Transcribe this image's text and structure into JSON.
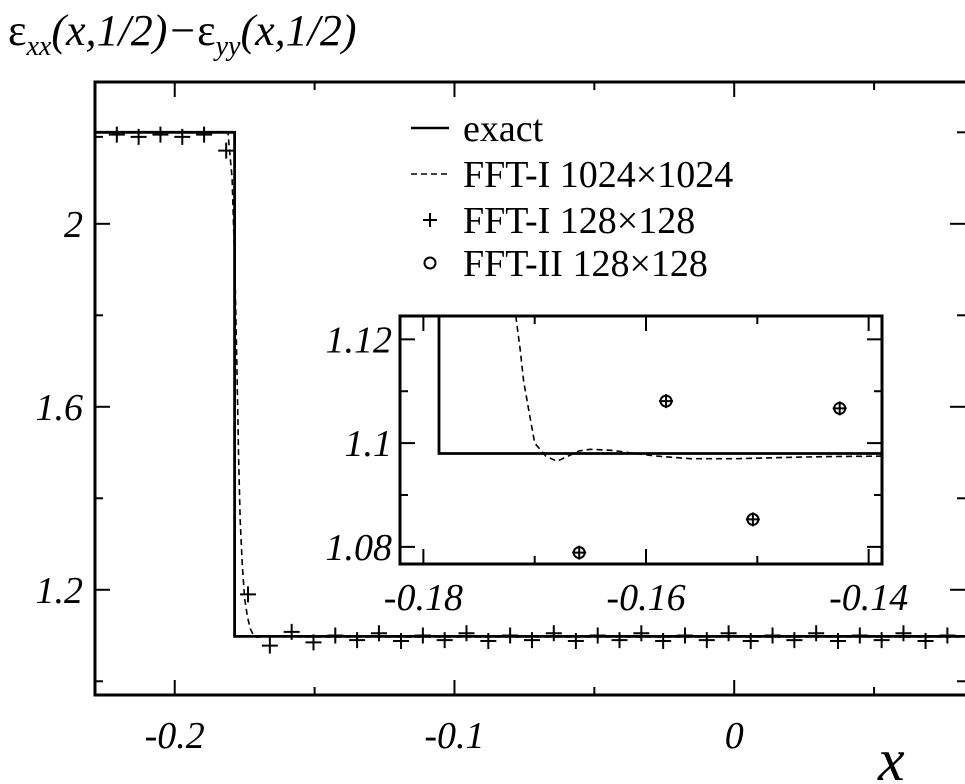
{
  "chart_data": [
    {
      "type": "line",
      "title": "",
      "ylabel": "ε_xx(x,1/2)−ε_yy(x,1/2)",
      "ylabel_parts": {
        "eps1": "ε",
        "sub1": "xx",
        "mid": "(x,1/2)−",
        "eps2": "ε",
        "sub2": "yy",
        "end": "(x,1/2)"
      },
      "xlabel": "x",
      "xlim": [
        -0.2285,
        0.0825
      ],
      "ylim": [
        0.97,
        2.31
      ],
      "xticks": [
        -0.2,
        -0.1,
        0
      ],
      "xtick_labels": [
        "-0.2",
        "-0.1",
        "0"
      ],
      "yticks": [
        1.2,
        1.6,
        2
      ],
      "ytick_labels": [
        "1.2",
        "1.6",
        "2"
      ],
      "grid": false,
      "legend_position": "top-right",
      "legend": [
        {
          "label": "exact",
          "marker": "solid-line"
        },
        {
          "label": "FFT-I 1024×1024",
          "marker": "dashed-line"
        },
        {
          "label": "FFT-I 128×128",
          "marker": "plus"
        },
        {
          "label": "FFT-II 128×128",
          "marker": "circle"
        }
      ],
      "series": [
        {
          "name": "exact",
          "style": "solid",
          "x": [
            -0.2285,
            -0.1786,
            -0.1786,
            0.0825
          ],
          "y": [
            2.2,
            2.2,
            1.098,
            1.098
          ]
        },
        {
          "name": "FFT-I 1024×1024",
          "style": "dashed",
          "x": [
            -0.2285,
            -0.181,
            -0.1795,
            -0.1785,
            -0.1778,
            -0.1772,
            -0.1766,
            -0.1758,
            -0.175,
            -0.174,
            -0.173,
            -0.1718,
            -0.1705,
            -0.169,
            -0.165,
            -0.16,
            -0.155,
            -0.15,
            -0.14,
            -0.1,
            0.0,
            0.0825
          ],
          "y": [
            2.2,
            2.2,
            2.1,
            1.9,
            1.7,
            1.5,
            1.35,
            1.25,
            1.18,
            1.14,
            1.115,
            1.1,
            1.096,
            1.098,
            1.099,
            1.098,
            1.097,
            1.097,
            1.097,
            1.097,
            1.097,
            1.097
          ]
        },
        {
          "name": "FFT-I 128×128",
          "style": "plus",
          "x": [
            -0.2285,
            -0.2207,
            -0.2129,
            -0.2051,
            -0.1973,
            -0.1895,
            -0.1816,
            -0.1738,
            -0.166,
            -0.1582,
            -0.1504,
            -0.1426,
            -0.1348,
            -0.127,
            -0.1191,
            -0.1113,
            -0.1035,
            -0.0957,
            -0.0879,
            -0.0801,
            -0.0723,
            -0.0645,
            -0.0566,
            -0.0488,
            -0.041,
            -0.0332,
            -0.0254,
            -0.0176,
            -0.0098,
            -0.002,
            0.0059,
            0.0137,
            0.0215,
            0.0293,
            0.0371,
            0.0449,
            0.0527,
            0.0605,
            0.0684,
            0.0762
          ],
          "y": [
            2.19,
            2.195,
            2.19,
            2.195,
            2.19,
            2.195,
            2.16,
            1.19,
            1.078,
            1.108,
            1.085,
            1.1,
            1.09,
            1.105,
            1.088,
            1.1,
            1.09,
            1.105,
            1.088,
            1.1,
            1.09,
            1.105,
            1.088,
            1.1,
            1.09,
            1.105,
            1.088,
            1.1,
            1.09,
            1.105,
            1.088,
            1.1,
            1.09,
            1.105,
            1.088,
            1.1,
            1.09,
            1.105,
            1.088,
            1.1
          ]
        },
        {
          "name": "FFT-II 128×128",
          "style": "circle",
          "x": [],
          "y": []
        }
      ]
    },
    {
      "type": "line",
      "title": "",
      "xlabel": "",
      "ylabel": "",
      "xlim": [
        -0.1821,
        -0.1388
      ],
      "ylim": [
        1.0767,
        1.1245
      ],
      "xticks": [
        -0.18,
        -0.16,
        -0.14
      ],
      "xtick_labels": [
        "-0.18",
        "-0.16",
        "-0.14"
      ],
      "yticks": [
        1.08,
        1.1,
        1.12
      ],
      "ytick_labels": [
        "1.08",
        "1.1",
        "1.12"
      ],
      "grid": false,
      "series": [
        {
          "name": "exact",
          "style": "solid",
          "x": [
            -0.1786,
            -0.1786,
            -0.1388
          ],
          "y": [
            1.1245,
            1.098,
            1.098
          ]
        },
        {
          "name": "FFT-I 1024×1024",
          "style": "dashed",
          "x": [
            -0.1717,
            -0.1713,
            -0.171,
            -0.1705,
            -0.17,
            -0.169,
            -0.168,
            -0.167,
            -0.166,
            -0.165,
            -0.163,
            -0.161,
            -0.159,
            -0.156,
            -0.152,
            -0.148,
            -0.144,
            -0.1388
          ],
          "y": [
            1.1245,
            1.118,
            1.112,
            1.106,
            1.1,
            1.0975,
            1.0965,
            1.0975,
            1.0985,
            1.0988,
            1.0986,
            1.098,
            1.0975,
            1.097,
            1.097,
            1.0972,
            1.0974,
            1.0975
          ]
        },
        {
          "name": "FFT-I 128×128",
          "style": "plus",
          "x": [
            -0.166,
            -0.1582,
            -0.1504,
            -0.1426
          ],
          "y": [
            1.0789,
            1.1081,
            1.0853,
            1.1067
          ]
        },
        {
          "name": "FFT-II 128×128",
          "style": "circle",
          "x": [
            -0.166,
            -0.1582,
            -0.1504,
            -0.1426
          ],
          "y": [
            1.0789,
            1.1081,
            1.0853,
            1.1067
          ]
        }
      ]
    }
  ]
}
